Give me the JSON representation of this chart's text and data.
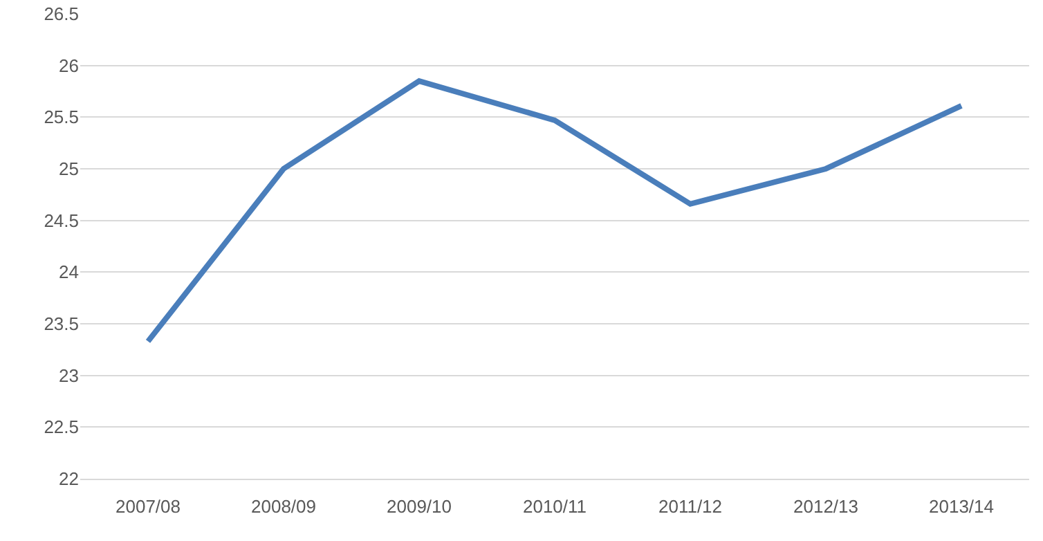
{
  "chart_data": {
    "type": "line",
    "categories": [
      "2007/08",
      "2008/09",
      "2009/10",
      "2010/11",
      "2011/12",
      "2012/13",
      "2013/14"
    ],
    "series": [
      {
        "color": "#4a7ebb",
        "values": [
          23.33,
          25.0,
          25.85,
          25.47,
          24.66,
          25.0,
          25.61
        ]
      }
    ],
    "ylim": [
      22,
      26.5
    ],
    "yticks": [
      22,
      22.5,
      23,
      23.5,
      24,
      24.5,
      25,
      25.5,
      26,
      26.5
    ],
    "grid": "y",
    "marker": "none",
    "line_style": "solid"
  }
}
